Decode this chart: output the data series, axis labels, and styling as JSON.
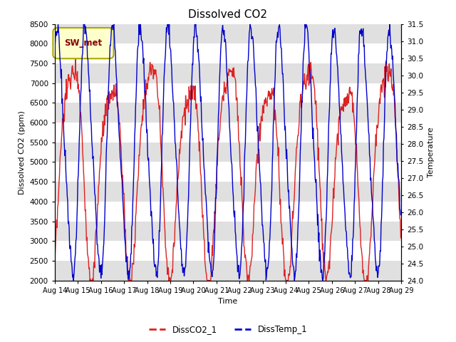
{
  "title": "Dissolved CO2",
  "xlabel": "Time",
  "ylabel_left": "Dissolved CO2 (ppm)",
  "ylabel_right": "Temperature",
  "ylim_left": [
    2000,
    8500
  ],
  "ylim_right": [
    24.0,
    31.5
  ],
  "legend_label": "SW_met",
  "line1_label": "DissCO2_1",
  "line2_label": "DissTemp_1",
  "line1_color": "#DD2222",
  "line2_color": "#0000CC",
  "background_color": "#ffffff",
  "band_color": "#e0e0e0",
  "legend_box_facecolor": "#ffffcc",
  "legend_box_edgecolor": "#aaaa00",
  "title_fontsize": 11,
  "axis_label_fontsize": 8,
  "tick_fontsize": 7.5,
  "n_points": 720
}
